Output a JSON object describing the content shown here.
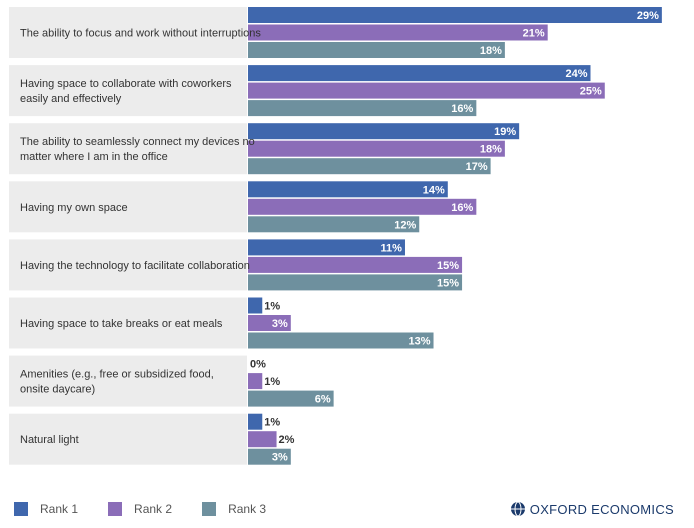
{
  "chart_data": {
    "type": "bar",
    "orientation": "horizontal",
    "categories": [
      [
        "The ability to focus and work without interruptions"
      ],
      [
        "Having space to collaborate with coworkers",
        "easily and effectively"
      ],
      [
        "The ability to seamlessly connect my devices no",
        "matter where I am in the office"
      ],
      [
        "Having my own space"
      ],
      [
        "Having the technology to facilitate collaboration"
      ],
      [
        "Having space to take breaks or eat meals"
      ],
      [
        "Amenities (e.g., free or subsidized food,",
        "onsite daycare)"
      ],
      [
        "Natural light"
      ]
    ],
    "series": [
      {
        "name": "Rank 1",
        "color": "#3f67ad",
        "values": [
          29,
          24,
          19,
          14,
          11,
          1,
          0,
          1
        ]
      },
      {
        "name": "Rank 2",
        "color": "#8b6db8",
        "values": [
          21,
          25,
          18,
          16,
          15,
          3,
          1,
          2
        ]
      },
      {
        "name": "Rank 3",
        "color": "#6e909e",
        "values": [
          18,
          16,
          17,
          12,
          15,
          13,
          6,
          3
        ]
      }
    ],
    "value_suffix": "%",
    "xlim": [
      0,
      29.5
    ],
    "legend_position": "bottom-left",
    "grid": false
  },
  "brand": {
    "name": "OXFORD ECONOMICS",
    "logo_icon": "globe-icon"
  },
  "colors": {
    "category_panel": "#ececec",
    "label_on_bar": "#ffffff",
    "label_outside": "#333333"
  }
}
